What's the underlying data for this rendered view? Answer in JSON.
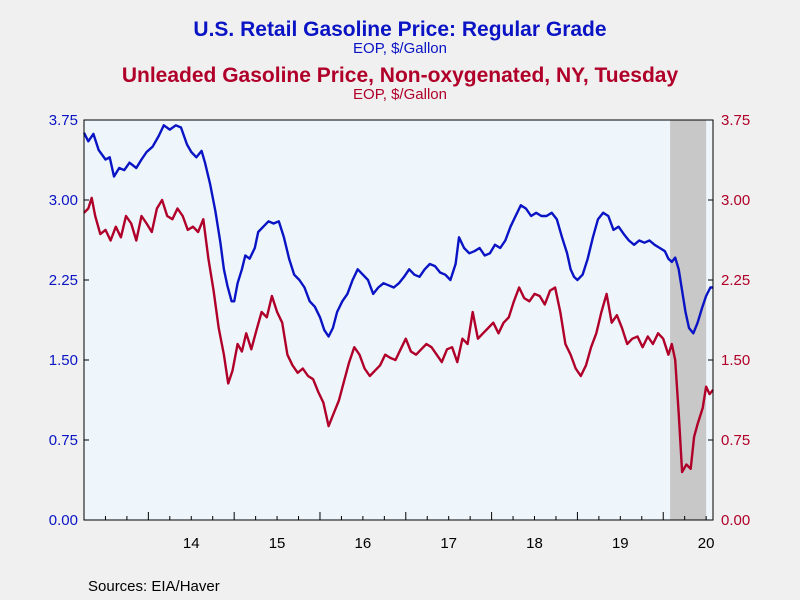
{
  "chart_data": {
    "type": "line",
    "title": "U.S. Retail Gasoline Price: Regular Grade",
    "subtitle": "EOP, $/Gallon",
    "title2": "Unleaded Gasoline Price, Non-oxygenated, NY, Tuesday",
    "subtitle2": "EOP, $/Gallon",
    "source": "Sources:  EIA/Haver",
    "xlim": [
      2013.25,
      2020.58
    ],
    "ylim": [
      0,
      3.75
    ],
    "y_ticks": [
      "0.00",
      "0.75",
      "1.50",
      "2.25",
      "3.00",
      "3.75"
    ],
    "x_ticks": [
      {
        "label": "14",
        "x": 2014.0
      },
      {
        "label": "15",
        "x": 2015.0
      },
      {
        "label": "16",
        "x": 2016.0
      },
      {
        "label": "17",
        "x": 2017.0
      },
      {
        "label": "18",
        "x": 2018.0
      },
      {
        "label": "19",
        "x": 2019.0
      },
      {
        "label": "20",
        "x": 2020.0
      }
    ],
    "shaded_region": [
      2020.08,
      2020.5
    ],
    "colors": {
      "retail": "#0a14c4",
      "ny": "#b0002a",
      "shade": "#c8c8c8",
      "plot_bg": "#eef6fc"
    },
    "series": [
      {
        "key": "retail",
        "points": [
          [
            2013.25,
            3.63
          ],
          [
            2013.3,
            3.55
          ],
          [
            2013.36,
            3.62
          ],
          [
            2013.42,
            3.47
          ],
          [
            2013.5,
            3.38
          ],
          [
            2013.55,
            3.4
          ],
          [
            2013.6,
            3.22
          ],
          [
            2013.66,
            3.3
          ],
          [
            2013.72,
            3.28
          ],
          [
            2013.78,
            3.35
          ],
          [
            2013.86,
            3.3
          ],
          [
            2013.92,
            3.38
          ],
          [
            2013.98,
            3.45
          ],
          [
            2014.05,
            3.5
          ],
          [
            2014.12,
            3.6
          ],
          [
            2014.18,
            3.7
          ],
          [
            2014.25,
            3.66
          ],
          [
            2014.32,
            3.7
          ],
          [
            2014.38,
            3.68
          ],
          [
            2014.45,
            3.52
          ],
          [
            2014.5,
            3.45
          ],
          [
            2014.56,
            3.4
          ],
          [
            2014.62,
            3.46
          ],
          [
            2014.66,
            3.35
          ],
          [
            2014.72,
            3.15
          ],
          [
            2014.78,
            2.9
          ],
          [
            2014.84,
            2.6
          ],
          [
            2014.88,
            2.35
          ],
          [
            2014.92,
            2.2
          ],
          [
            2014.97,
            2.05
          ],
          [
            2015.0,
            2.05
          ],
          [
            2015.04,
            2.22
          ],
          [
            2015.09,
            2.35
          ],
          [
            2015.13,
            2.48
          ],
          [
            2015.18,
            2.45
          ],
          [
            2015.24,
            2.55
          ],
          [
            2015.28,
            2.7
          ],
          [
            2015.34,
            2.75
          ],
          [
            2015.4,
            2.8
          ],
          [
            2015.46,
            2.78
          ],
          [
            2015.52,
            2.8
          ],
          [
            2015.58,
            2.65
          ],
          [
            2015.64,
            2.45
          ],
          [
            2015.7,
            2.3
          ],
          [
            2015.76,
            2.25
          ],
          [
            2015.82,
            2.18
          ],
          [
            2015.88,
            2.05
          ],
          [
            2015.94,
            2.0
          ],
          [
            2016.0,
            1.9
          ],
          [
            2016.05,
            1.78
          ],
          [
            2016.1,
            1.72
          ],
          [
            2016.15,
            1.8
          ],
          [
            2016.2,
            1.95
          ],
          [
            2016.26,
            2.05
          ],
          [
            2016.32,
            2.12
          ],
          [
            2016.38,
            2.25
          ],
          [
            2016.44,
            2.35
          ],
          [
            2016.5,
            2.3
          ],
          [
            2016.56,
            2.25
          ],
          [
            2016.62,
            2.12
          ],
          [
            2016.68,
            2.18
          ],
          [
            2016.74,
            2.22
          ],
          [
            2016.8,
            2.2
          ],
          [
            2016.86,
            2.18
          ],
          [
            2016.92,
            2.22
          ],
          [
            2016.98,
            2.28
          ],
          [
            2017.04,
            2.35
          ],
          [
            2017.1,
            2.3
          ],
          [
            2017.16,
            2.28
          ],
          [
            2017.22,
            2.35
          ],
          [
            2017.28,
            2.4
          ],
          [
            2017.34,
            2.38
          ],
          [
            2017.4,
            2.32
          ],
          [
            2017.46,
            2.3
          ],
          [
            2017.52,
            2.25
          ],
          [
            2017.58,
            2.4
          ],
          [
            2017.62,
            2.65
          ],
          [
            2017.68,
            2.55
          ],
          [
            2017.74,
            2.5
          ],
          [
            2017.8,
            2.52
          ],
          [
            2017.86,
            2.55
          ],
          [
            2017.92,
            2.48
          ],
          [
            2017.98,
            2.5
          ],
          [
            2018.04,
            2.58
          ],
          [
            2018.1,
            2.55
          ],
          [
            2018.16,
            2.62
          ],
          [
            2018.22,
            2.75
          ],
          [
            2018.28,
            2.85
          ],
          [
            2018.34,
            2.95
          ],
          [
            2018.4,
            2.92
          ],
          [
            2018.46,
            2.85
          ],
          [
            2018.52,
            2.88
          ],
          [
            2018.58,
            2.85
          ],
          [
            2018.64,
            2.85
          ],
          [
            2018.7,
            2.88
          ],
          [
            2018.76,
            2.82
          ],
          [
            2018.82,
            2.65
          ],
          [
            2018.88,
            2.5
          ],
          [
            2018.92,
            2.35
          ],
          [
            2018.96,
            2.28
          ],
          [
            2019.0,
            2.25
          ],
          [
            2019.06,
            2.3
          ],
          [
            2019.12,
            2.45
          ],
          [
            2019.18,
            2.65
          ],
          [
            2019.24,
            2.82
          ],
          [
            2019.3,
            2.88
          ],
          [
            2019.36,
            2.85
          ],
          [
            2019.42,
            2.72
          ],
          [
            2019.48,
            2.75
          ],
          [
            2019.54,
            2.68
          ],
          [
            2019.6,
            2.62
          ],
          [
            2019.66,
            2.58
          ],
          [
            2019.72,
            2.62
          ],
          [
            2019.78,
            2.6
          ],
          [
            2019.84,
            2.62
          ],
          [
            2019.9,
            2.58
          ],
          [
            2019.96,
            2.55
          ],
          [
            2020.02,
            2.52
          ],
          [
            2020.06,
            2.45
          ],
          [
            2020.1,
            2.42
          ],
          [
            2020.14,
            2.46
          ],
          [
            2020.18,
            2.35
          ],
          [
            2020.22,
            2.15
          ],
          [
            2020.26,
            1.95
          ],
          [
            2020.3,
            1.8
          ],
          [
            2020.35,
            1.75
          ],
          [
            2020.4,
            1.85
          ],
          [
            2020.45,
            1.98
          ],
          [
            2020.5,
            2.1
          ],
          [
            2020.55,
            2.18
          ],
          [
            2020.58,
            2.18
          ]
        ]
      },
      {
        "key": "ny",
        "points": [
          [
            2013.25,
            2.88
          ],
          [
            2013.3,
            2.92
          ],
          [
            2013.34,
            3.02
          ],
          [
            2013.38,
            2.85
          ],
          [
            2013.44,
            2.68
          ],
          [
            2013.5,
            2.72
          ],
          [
            2013.56,
            2.62
          ],
          [
            2013.62,
            2.75
          ],
          [
            2013.68,
            2.65
          ],
          [
            2013.74,
            2.85
          ],
          [
            2013.8,
            2.78
          ],
          [
            2013.86,
            2.62
          ],
          [
            2013.92,
            2.85
          ],
          [
            2013.98,
            2.78
          ],
          [
            2014.04,
            2.7
          ],
          [
            2014.1,
            2.92
          ],
          [
            2014.16,
            3.0
          ],
          [
            2014.22,
            2.85
          ],
          [
            2014.28,
            2.82
          ],
          [
            2014.34,
            2.92
          ],
          [
            2014.4,
            2.85
          ],
          [
            2014.46,
            2.72
          ],
          [
            2014.52,
            2.75
          ],
          [
            2014.58,
            2.7
          ],
          [
            2014.64,
            2.82
          ],
          [
            2014.7,
            2.45
          ],
          [
            2014.76,
            2.15
          ],
          [
            2014.82,
            1.8
          ],
          [
            2014.88,
            1.55
          ],
          [
            2014.93,
            1.28
          ],
          [
            2014.98,
            1.4
          ],
          [
            2015.04,
            1.65
          ],
          [
            2015.09,
            1.58
          ],
          [
            2015.14,
            1.75
          ],
          [
            2015.2,
            1.6
          ],
          [
            2015.26,
            1.78
          ],
          [
            2015.32,
            1.95
          ],
          [
            2015.38,
            1.9
          ],
          [
            2015.44,
            2.1
          ],
          [
            2015.5,
            1.95
          ],
          [
            2015.56,
            1.85
          ],
          [
            2015.62,
            1.55
          ],
          [
            2015.68,
            1.45
          ],
          [
            2015.74,
            1.38
          ],
          [
            2015.8,
            1.42
          ],
          [
            2015.86,
            1.35
          ],
          [
            2015.92,
            1.32
          ],
          [
            2015.98,
            1.2
          ],
          [
            2016.04,
            1.1
          ],
          [
            2016.1,
            0.88
          ],
          [
            2016.16,
            1.0
          ],
          [
            2016.22,
            1.12
          ],
          [
            2016.28,
            1.3
          ],
          [
            2016.34,
            1.48
          ],
          [
            2016.4,
            1.62
          ],
          [
            2016.46,
            1.55
          ],
          [
            2016.52,
            1.42
          ],
          [
            2016.58,
            1.35
          ],
          [
            2016.64,
            1.4
          ],
          [
            2016.7,
            1.45
          ],
          [
            2016.76,
            1.55
          ],
          [
            2016.82,
            1.52
          ],
          [
            2016.88,
            1.5
          ],
          [
            2016.94,
            1.6
          ],
          [
            2017.0,
            1.7
          ],
          [
            2017.06,
            1.58
          ],
          [
            2017.12,
            1.55
          ],
          [
            2017.18,
            1.6
          ],
          [
            2017.24,
            1.65
          ],
          [
            2017.3,
            1.62
          ],
          [
            2017.36,
            1.55
          ],
          [
            2017.42,
            1.48
          ],
          [
            2017.48,
            1.6
          ],
          [
            2017.54,
            1.62
          ],
          [
            2017.6,
            1.48
          ],
          [
            2017.66,
            1.7
          ],
          [
            2017.72,
            1.65
          ],
          [
            2017.78,
            1.95
          ],
          [
            2017.84,
            1.7
          ],
          [
            2017.9,
            1.75
          ],
          [
            2017.96,
            1.8
          ],
          [
            2018.02,
            1.85
          ],
          [
            2018.08,
            1.75
          ],
          [
            2018.14,
            1.85
          ],
          [
            2018.2,
            1.9
          ],
          [
            2018.26,
            2.05
          ],
          [
            2018.32,
            2.18
          ],
          [
            2018.38,
            2.08
          ],
          [
            2018.44,
            2.05
          ],
          [
            2018.5,
            2.12
          ],
          [
            2018.56,
            2.1
          ],
          [
            2018.62,
            2.02
          ],
          [
            2018.68,
            2.15
          ],
          [
            2018.74,
            2.18
          ],
          [
            2018.8,
            1.95
          ],
          [
            2018.86,
            1.65
          ],
          [
            2018.92,
            1.55
          ],
          [
            2018.98,
            1.42
          ],
          [
            2019.04,
            1.35
          ],
          [
            2019.1,
            1.45
          ],
          [
            2019.16,
            1.62
          ],
          [
            2019.22,
            1.75
          ],
          [
            2019.28,
            1.95
          ],
          [
            2019.34,
            2.12
          ],
          [
            2019.4,
            1.85
          ],
          [
            2019.46,
            1.92
          ],
          [
            2019.52,
            1.8
          ],
          [
            2019.58,
            1.65
          ],
          [
            2019.64,
            1.7
          ],
          [
            2019.7,
            1.72
          ],
          [
            2019.76,
            1.62
          ],
          [
            2019.82,
            1.72
          ],
          [
            2019.88,
            1.65
          ],
          [
            2019.94,
            1.75
          ],
          [
            2020.0,
            1.7
          ],
          [
            2020.06,
            1.55
          ],
          [
            2020.1,
            1.65
          ],
          [
            2020.14,
            1.5
          ],
          [
            2020.18,
            1.0
          ],
          [
            2020.22,
            0.45
          ],
          [
            2020.27,
            0.52
          ],
          [
            2020.32,
            0.48
          ],
          [
            2020.36,
            0.78
          ],
          [
            2020.4,
            0.9
          ],
          [
            2020.46,
            1.05
          ],
          [
            2020.5,
            1.25
          ],
          [
            2020.54,
            1.18
          ],
          [
            2020.58,
            1.22
          ]
        ]
      }
    ]
  }
}
